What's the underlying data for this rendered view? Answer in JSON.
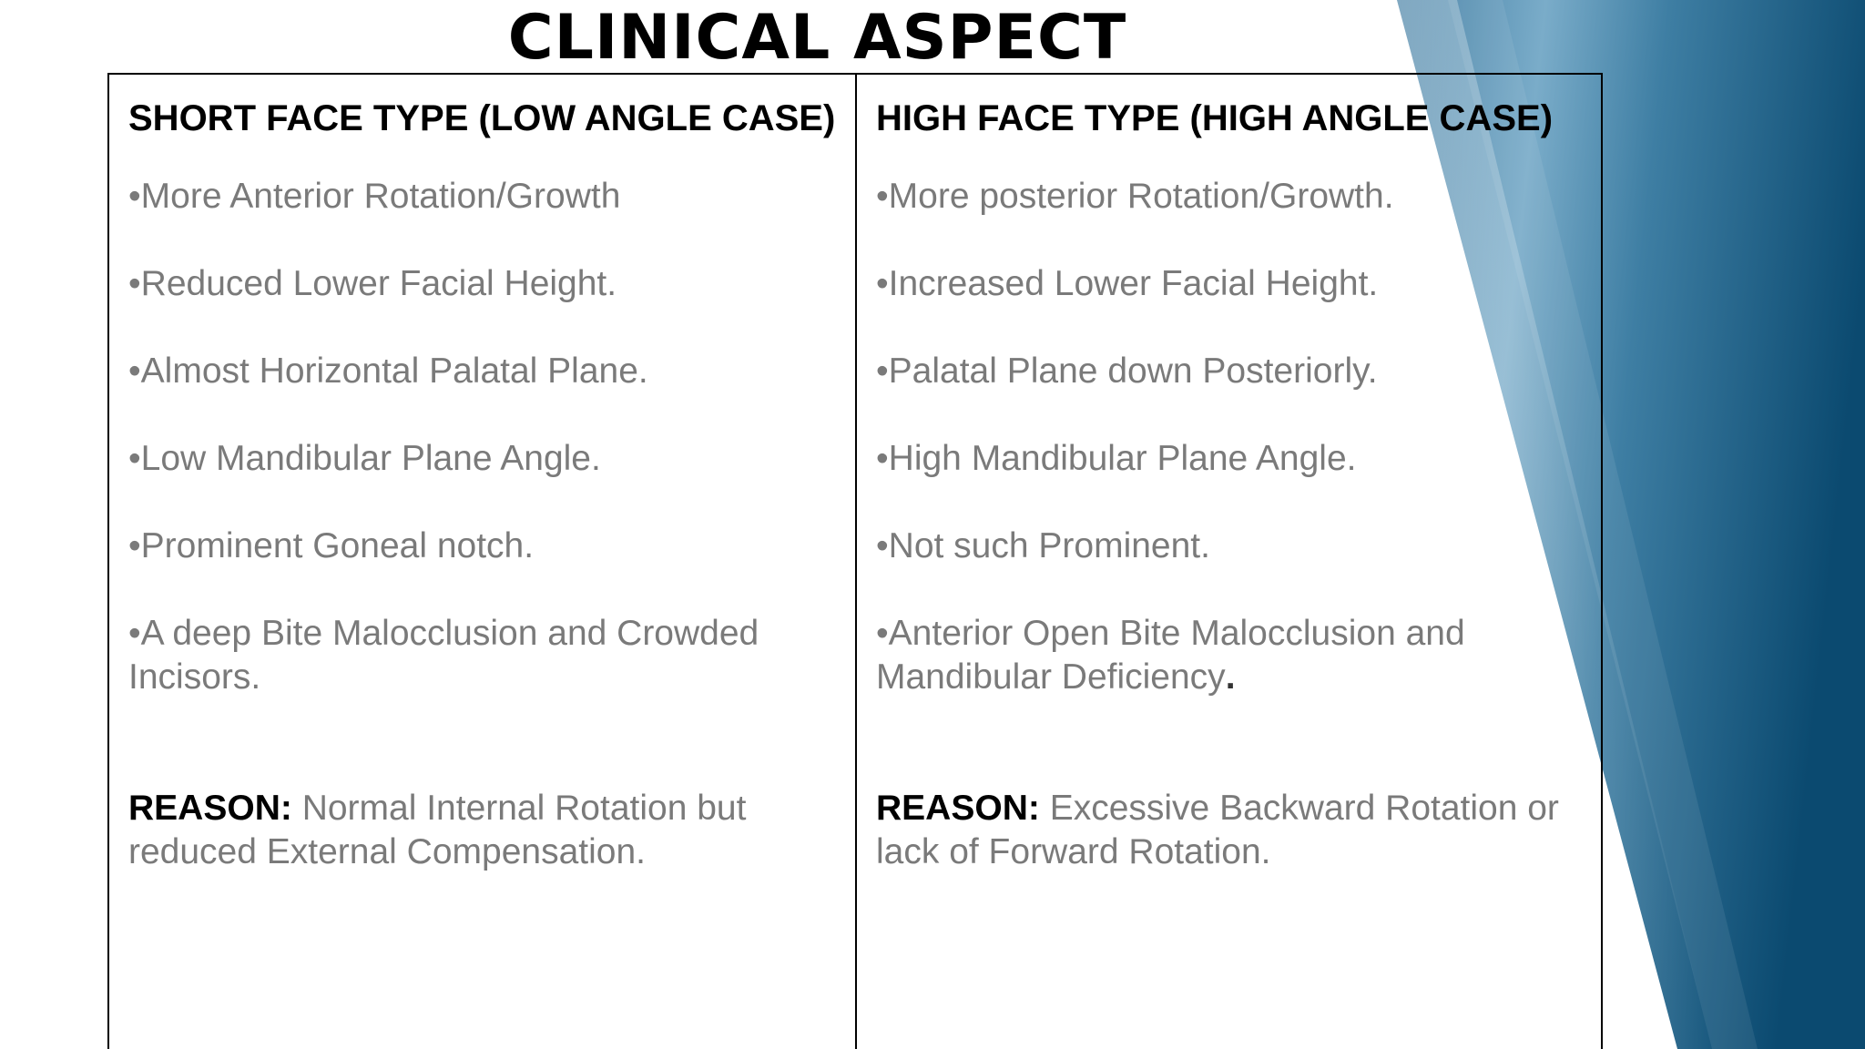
{
  "slide": {
    "title": "CLINICAL ASPECT",
    "accent_colors": [
      "#0b4a70",
      "#3e7ea3",
      "#7fb0cc",
      "#ffffff"
    ]
  },
  "left_column": {
    "header": "SHORT FACE TYPE (LOW ANGLE CASE)",
    "points": [
      "•More Anterior Rotation/Growth",
      "•Reduced Lower Facial Height.",
      "•Almost Horizontal Palatal Plane.",
      "•Low Mandibular Plane Angle.",
      "•Prominent Goneal notch.",
      "•A deep Bite Malocclusion and Crowded Incisors."
    ],
    "reason_label": "REASON:",
    "reason_text": "Normal Internal Rotation but reduced External Compensation."
  },
  "right_column": {
    "header": "HIGH FACE TYPE (HIGH ANGLE CASE)",
    "points": [
      "•More posterior Rotation/Growth.",
      "•Increased Lower Facial Height.",
      "•Palatal Plane down Posteriorly.",
      "•High Mandibular Plane Angle.",
      "•Not such Prominent."
    ],
    "last_point_text": "•Anterior Open Bite Malocclusion and Mandibular Deficiency",
    "last_point_period": ".",
    "reason_label": "REASON:",
    "reason_text": "Excessive Backward Rotation or lack of Forward Rotation."
  }
}
